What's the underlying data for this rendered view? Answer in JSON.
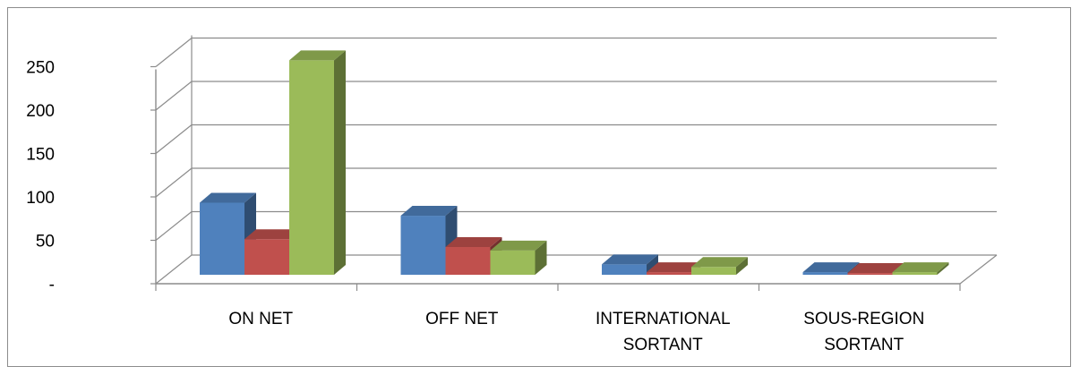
{
  "chart_data": {
    "type": "bar",
    "style": "3d-clustered-column",
    "categories": [
      [
        "ON NET"
      ],
      [
        "OFF NET"
      ],
      [
        "INTERNATIONAL",
        "SORTANT"
      ],
      [
        "SOUS-REGION",
        "SORTANT"
      ]
    ],
    "series": [
      {
        "values": [
          83,
          68,
          12,
          3
        ],
        "color": "#4f81bd"
      },
      {
        "values": [
          41,
          32,
          3,
          2
        ],
        "color": "#c0504d"
      },
      {
        "values": [
          247,
          28,
          9,
          3
        ],
        "color": "#9bbb59"
      }
    ],
    "y_ticks": [
      "-",
      "50",
      "100",
      "150",
      "200",
      "250"
    ],
    "ylim": [
      0,
      250
    ],
    "grid": true,
    "legend": "none"
  }
}
